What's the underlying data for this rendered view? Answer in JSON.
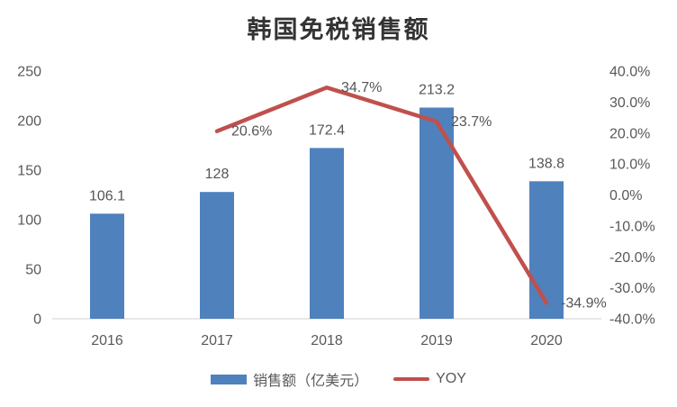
{
  "title": "韩国免税销售额",
  "chart_data": {
    "type": "bar",
    "combo": "bar+line",
    "title": "韩国免税销售额",
    "categories": [
      "2016",
      "2017",
      "2018",
      "2019",
      "2020"
    ],
    "series": [
      {
        "name": "销售额（亿美元）",
        "type": "bar",
        "axis": "left",
        "values": [
          106.1,
          128,
          172.4,
          213.2,
          138.8
        ],
        "labels": [
          "106.1",
          "128",
          "172.4",
          "213.2",
          "138.8"
        ],
        "color": "#4F81BD"
      },
      {
        "name": "YOY",
        "type": "line",
        "axis": "right",
        "values": [
          null,
          20.6,
          34.7,
          23.7,
          -34.9
        ],
        "labels": [
          null,
          "20.6%",
          "34.7%",
          "23.7%",
          "-34.9%"
        ],
        "color": "#C0504D"
      }
    ],
    "left_axis": {
      "min": 0,
      "max": 250,
      "step": 50,
      "ticks": [
        "0",
        "50",
        "100",
        "150",
        "200",
        "250"
      ]
    },
    "right_axis": {
      "min": -40,
      "max": 40,
      "step": 10,
      "ticks": [
        "40.0%",
        "30.0%",
        "20.0%",
        "10.0%",
        "0.0%",
        "-10.0%",
        "-20.0%",
        "-30.0%",
        "-40.0%"
      ]
    },
    "grid": false,
    "legend_position": "bottom"
  },
  "legend": {
    "items": [
      {
        "label": "销售额（亿美元）",
        "swatch": "bar"
      },
      {
        "label": "YOY",
        "swatch": "line"
      }
    ]
  },
  "colors": {
    "bar": "#4F81BD",
    "line": "#C0504D",
    "axis_text": "#595959",
    "baseline": "#D9D9D9",
    "title_text": "#333333"
  }
}
